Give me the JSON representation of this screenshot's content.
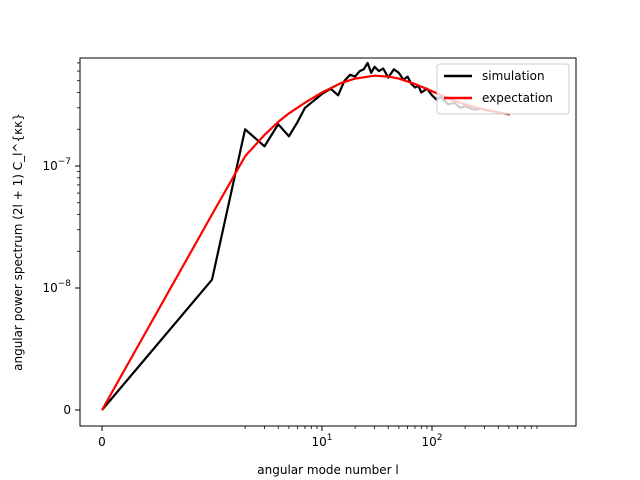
{
  "chart_data": {
    "type": "line",
    "xlabel": "angular mode number l",
    "ylabel": "angular power spectrum (2l + 1) C_l^{κκ}",
    "x_scale": "symlog",
    "y_scale": "symlog",
    "x_ticks": [
      {
        "value": 0,
        "label": "0",
        "base": "0",
        "exp": ""
      },
      {
        "value": 10,
        "label": "10^1",
        "base": "10",
        "exp": "1"
      },
      {
        "value": 100,
        "label": "10^2",
        "base": "10",
        "exp": "2"
      }
    ],
    "y_ticks": [
      {
        "value": 0,
        "label": "0",
        "base": "0",
        "exp": ""
      },
      {
        "value": 1e-08,
        "label": "10^-8",
        "base": "10",
        "exp": "−8"
      },
      {
        "value": 1e-07,
        "label": "10^-7",
        "base": "10",
        "exp": "−7"
      }
    ],
    "legend": {
      "position": "top-right",
      "entries": [
        {
          "label": "simulation",
          "color": "#000000"
        },
        {
          "label": "expectation",
          "color": "#ff0000"
        }
      ]
    },
    "series": [
      {
        "name": "simulation",
        "color": "#000000",
        "points": [
          [
            0,
            0
          ],
          [
            1,
            1.17e-08
          ],
          [
            2,
            2e-07
          ],
          [
            3,
            1.45e-07
          ],
          [
            4,
            2.2e-07
          ],
          [
            5,
            1.75e-07
          ],
          [
            6,
            2.3e-07
          ],
          [
            7,
            3e-07
          ],
          [
            8,
            3.3e-07
          ],
          [
            9,
            3.6e-07
          ],
          [
            10,
            3.9e-07
          ],
          [
            12,
            4.3e-07
          ],
          [
            14,
            3.8e-07
          ],
          [
            16,
            5e-07
          ],
          [
            18,
            5.6e-07
          ],
          [
            20,
            5.4e-07
          ],
          [
            22,
            6e-07
          ],
          [
            24,
            6.2e-07
          ],
          [
            26,
            7e-07
          ],
          [
            28,
            5.8e-07
          ],
          [
            30,
            6.5e-07
          ],
          [
            33,
            6e-07
          ],
          [
            36,
            6.3e-07
          ],
          [
            40,
            5.3e-07
          ],
          [
            45,
            6.2e-07
          ],
          [
            50,
            5.8e-07
          ],
          [
            55,
            5.1e-07
          ],
          [
            60,
            5.4e-07
          ],
          [
            65,
            4.7e-07
          ],
          [
            70,
            4.4e-07
          ],
          [
            75,
            4.55e-07
          ],
          [
            80,
            4e-07
          ],
          [
            90,
            4.3e-07
          ],
          [
            100,
            3.8e-07
          ],
          [
            110,
            3.5e-07
          ],
          [
            120,
            3.7e-07
          ],
          [
            140,
            3.2e-07
          ],
          [
            160,
            3.3e-07
          ],
          [
            180,
            3e-07
          ],
          [
            200,
            3.1e-07
          ],
          [
            240,
            2.9e-07
          ],
          [
            280,
            2.95e-07
          ],
          [
            320,
            2.85e-07
          ],
          [
            360,
            2.8e-07
          ],
          [
            400,
            2.75e-07
          ],
          [
            450,
            2.7e-07
          ],
          [
            512,
            2.65e-07
          ]
        ]
      },
      {
        "name": "expectation",
        "color": "#ff0000",
        "points": [
          [
            0,
            0
          ],
          [
            1,
            4e-08
          ],
          [
            2,
            1.2e-07
          ],
          [
            3,
            1.8e-07
          ],
          [
            4,
            2.3e-07
          ],
          [
            5,
            2.7e-07
          ],
          [
            7,
            3.3e-07
          ],
          [
            10,
            4e-07
          ],
          [
            15,
            4.8e-07
          ],
          [
            20,
            5.2e-07
          ],
          [
            30,
            5.5e-07
          ],
          [
            40,
            5.4e-07
          ],
          [
            50,
            5.2e-07
          ],
          [
            70,
            4.7e-07
          ],
          [
            100,
            4.1e-07
          ],
          [
            150,
            3.5e-07
          ],
          [
            200,
            3.2e-07
          ],
          [
            300,
            2.9e-07
          ],
          [
            400,
            2.75e-07
          ],
          [
            512,
            2.65e-07
          ]
        ]
      }
    ]
  }
}
